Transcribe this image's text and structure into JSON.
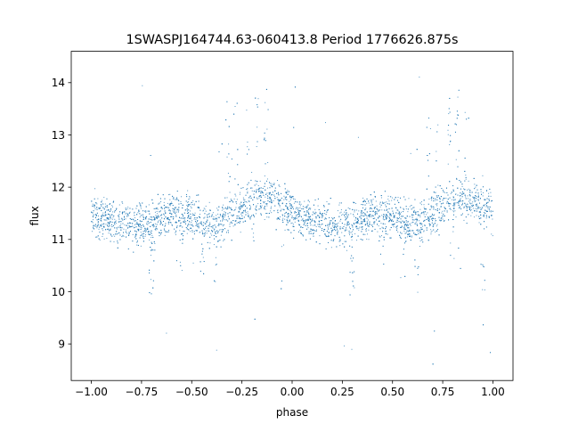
{
  "chart_data": {
    "type": "scatter",
    "title": "1SWASPJ164744.63-060413.8 Period 1776626.875s",
    "xlabel": "phase",
    "ylabel": "flux",
    "xlim": [
      -1.1,
      1.1
    ],
    "ylim": [
      8.3,
      14.6
    ],
    "xticks": [
      -1.0,
      -0.75,
      -0.5,
      -0.25,
      0.0,
      0.25,
      0.5,
      0.75,
      1.0
    ],
    "xtick_labels": [
      "−1.00",
      "−0.75",
      "−0.50",
      "−0.25",
      "0.00",
      "0.25",
      "0.50",
      "0.75",
      "1.00"
    ],
    "yticks": [
      9,
      10,
      11,
      12,
      13,
      14
    ],
    "ytick_labels": [
      "9",
      "10",
      "11",
      "12",
      "13",
      "14"
    ],
    "grid": false,
    "legend": "none",
    "marker_color": "#1f77b4",
    "phase_range": [
      -1.0,
      1.0
    ],
    "median_flux": 11.5,
    "typical_flux_range": [
      10.6,
      12.3
    ],
    "outlier_flux_range": [
      8.6,
      14.3
    ],
    "profile_phase": [
      0.0,
      0.1,
      0.2,
      0.3,
      0.35,
      0.4,
      0.5,
      0.6,
      0.65,
      0.7,
      0.8,
      0.9,
      1.0
    ],
    "profile_flux": [
      11.55,
      11.35,
      11.25,
      11.3,
      11.4,
      11.5,
      11.45,
      11.3,
      11.3,
      11.5,
      11.8,
      11.75,
      11.55
    ],
    "dip_phase": [
      0.3,
      0.45,
      0.55,
      0.62,
      0.8,
      0.95
    ],
    "dip_flux": [
      9.9,
      10.3,
      10.2,
      10.1,
      10.6,
      10.0
    ],
    "spike_phase": [
      0.68,
      0.72,
      0.78,
      0.82,
      0.87,
      0.95
    ],
    "spike_flux": [
      13.7,
      13.8,
      13.7,
      13.9,
      14.0,
      13.5
    ]
  }
}
